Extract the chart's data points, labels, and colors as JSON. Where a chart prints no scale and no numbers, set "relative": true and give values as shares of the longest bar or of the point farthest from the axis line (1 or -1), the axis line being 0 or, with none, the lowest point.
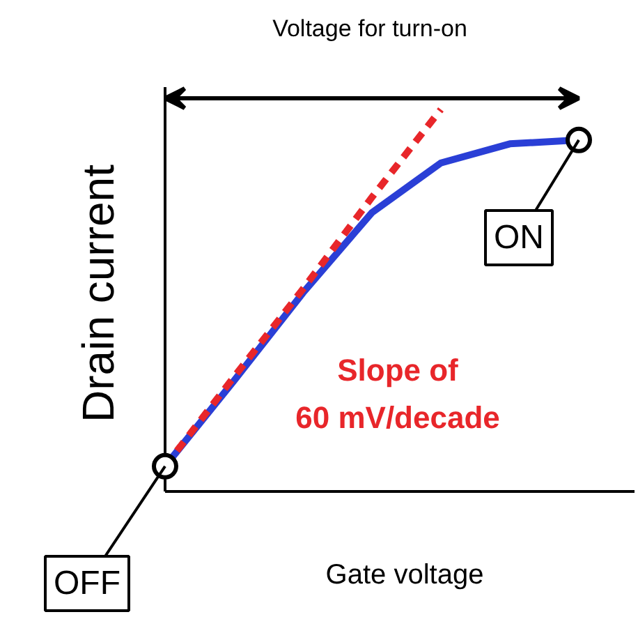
{
  "chart_data": {
    "type": "line",
    "relative": true,
    "xlabel": "Gate voltage",
    "ylabel": "Drain current",
    "grid": false,
    "categories": [
      null,
      null,
      null,
      null,
      null,
      null,
      null
    ],
    "series": [
      {
        "color": "#2a3fd6",
        "line_style": "solid",
        "values": [
          0.066,
          0.29,
          0.52,
          0.73,
          0.86,
          0.91,
          0.92
        ]
      },
      {
        "color": "#e8262a",
        "line_style": "dashed",
        "values": [
          0.066,
          0.3,
          0.53,
          0.77,
          1.0,
          null,
          null
        ]
      }
    ],
    "annotations": [
      "Voltage for turn-on",
      "OFF",
      "ON",
      "Slope of\n60 mV/decade"
    ]
  }
}
